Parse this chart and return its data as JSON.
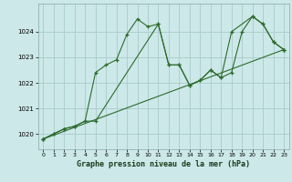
{
  "title": "Graphe pression niveau de la mer (hPa)",
  "bg_color": "#cce8e8",
  "grid_color": "#aacccc",
  "line_color": "#2d6b2d",
  "axis_bg": "#cce8e8",
  "xlim": [
    -0.5,
    23.5
  ],
  "ylim": [
    1019.4,
    1025.1
  ],
  "yticks": [
    1020,
    1021,
    1022,
    1023,
    1024
  ],
  "xticks": [
    0,
    1,
    2,
    3,
    4,
    5,
    6,
    7,
    8,
    9,
    10,
    11,
    12,
    13,
    14,
    15,
    16,
    17,
    18,
    19,
    20,
    21,
    22,
    23
  ],
  "series1": {
    "x": [
      0,
      1,
      2,
      3,
      4,
      5,
      6,
      7,
      8,
      9,
      10,
      11,
      12,
      13,
      14,
      15,
      16,
      17,
      18,
      19,
      20,
      21,
      22,
      23
    ],
    "y": [
      1019.8,
      1020.0,
      1020.2,
      1020.3,
      1020.5,
      1022.4,
      1022.7,
      1022.9,
      1023.9,
      1024.5,
      1024.2,
      1024.3,
      1022.7,
      1022.7,
      1021.9,
      1022.1,
      1022.5,
      1022.2,
      1022.4,
      1024.0,
      1024.6,
      1024.3,
      1023.6,
      1023.3
    ]
  },
  "series2": {
    "x": [
      0,
      1,
      2,
      3,
      4,
      5,
      11,
      12,
      13,
      14,
      15,
      16,
      17,
      18,
      20,
      21,
      22,
      23
    ],
    "y": [
      1019.8,
      1020.0,
      1020.2,
      1020.3,
      1020.5,
      1020.5,
      1024.3,
      1022.7,
      1022.7,
      1021.9,
      1022.1,
      1022.5,
      1022.2,
      1024.0,
      1024.6,
      1024.3,
      1023.6,
      1023.3
    ]
  },
  "series3": {
    "x": [
      0,
      23
    ],
    "y": [
      1019.8,
      1023.3
    ]
  }
}
